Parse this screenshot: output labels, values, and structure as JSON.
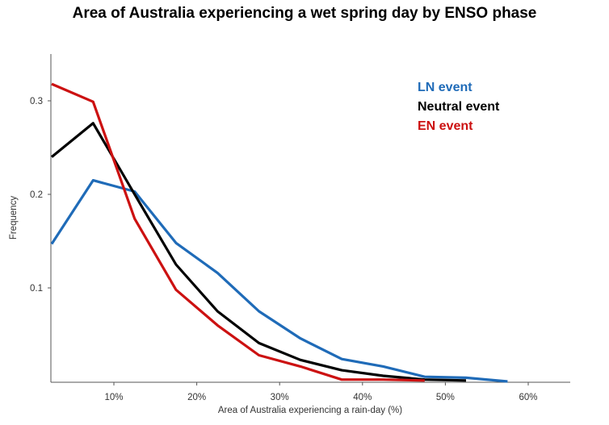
{
  "chart_data": {
    "type": "line",
    "title": "Area of Australia experiencing a wet spring day by ENSO phase",
    "xlabel": "Area of Australia experiencing a rain-day (%)",
    "ylabel": "Frequency",
    "xlim": [
      2.4,
      65
    ],
    "ylim": [
      0,
      0.35
    ],
    "grid": false,
    "legend_position": "top-right",
    "x_ticks": [
      {
        "value": 10,
        "label": "10%"
      },
      {
        "value": 20,
        "label": "20%"
      },
      {
        "value": 30,
        "label": "30%"
      },
      {
        "value": 40,
        "label": "40%"
      },
      {
        "value": 50,
        "label": "50%"
      },
      {
        "value": 60,
        "label": "60%"
      }
    ],
    "y_ticks": [
      {
        "value": 0.1,
        "label": "0.1"
      },
      {
        "value": 0.2,
        "label": "0.2"
      },
      {
        "value": 0.3,
        "label": "0.3"
      }
    ],
    "series": [
      {
        "name": "LN event",
        "color": "#1f6bb8",
        "x": [
          2.5,
          7.5,
          12.5,
          17.5,
          22.5,
          27.5,
          32.5,
          37.5,
          42.5,
          47.5,
          52.5,
          57.5
        ],
        "values": [
          0.147,
          0.215,
          0.203,
          0.148,
          0.116,
          0.075,
          0.046,
          0.024,
          0.016,
          0.005,
          0.004,
          0.0
        ]
      },
      {
        "name": "Neutral event",
        "color": "#000000",
        "x": [
          2.5,
          7.5,
          12.5,
          17.5,
          22.5,
          27.5,
          32.5,
          37.5,
          42.5,
          47.5,
          52.5
        ],
        "values": [
          0.24,
          0.276,
          0.2,
          0.125,
          0.075,
          0.041,
          0.023,
          0.012,
          0.006,
          0.002,
          0.001
        ]
      },
      {
        "name": "EN event",
        "color": "#cc1111",
        "x": [
          2.5,
          7.5,
          12.5,
          17.5,
          22.5,
          27.5,
          32.5,
          37.5,
          42.5,
          47.5
        ],
        "values": [
          0.318,
          0.299,
          0.174,
          0.098,
          0.06,
          0.028,
          0.016,
          0.002,
          0.002,
          0.001
        ]
      }
    ]
  }
}
